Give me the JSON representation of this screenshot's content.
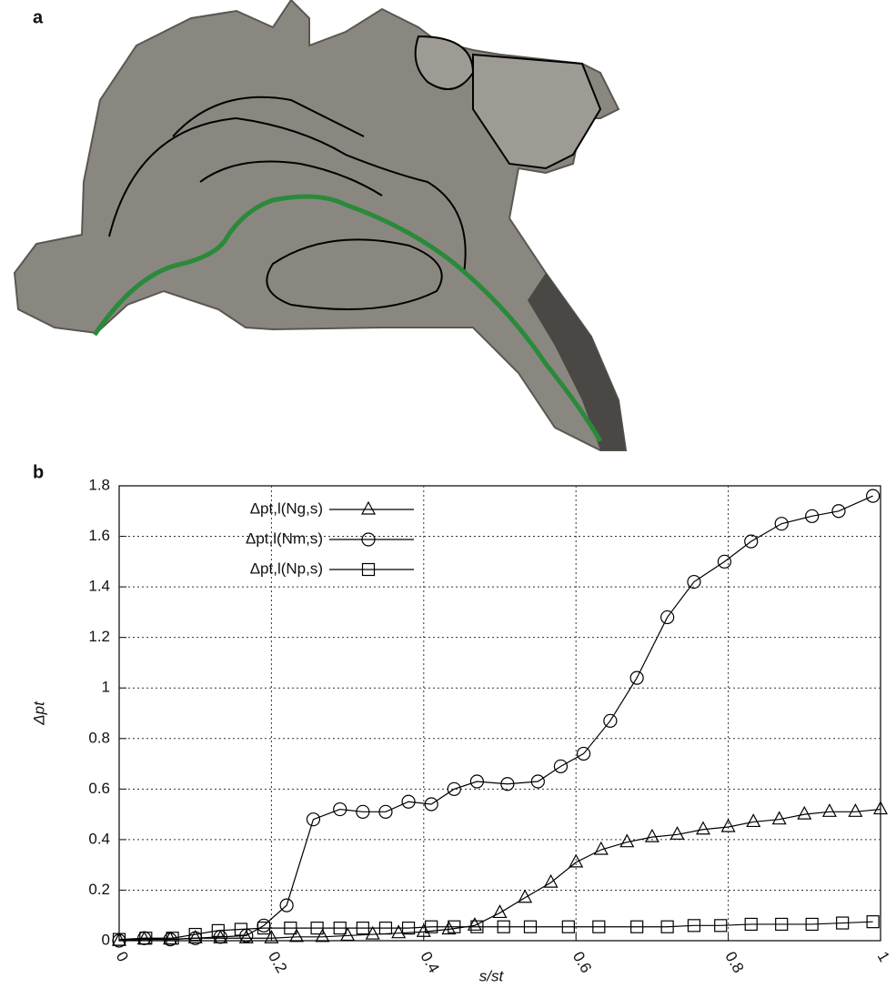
{
  "figure": {
    "panel_a_label": "a",
    "panel_b_label": "b"
  },
  "chart_data": {
    "type": "line",
    "x_label": "s/st",
    "y_label": "Δpt",
    "xlim": [
      0,
      1
    ],
    "ylim": [
      0,
      1.8
    ],
    "xticks": [
      0,
      0.2,
      0.4,
      0.6,
      0.8,
      1
    ],
    "yticks": [
      0,
      0.2,
      0.4,
      0.6,
      0.8,
      1,
      1.2,
      1.4,
      1.6,
      1.8
    ],
    "grid": true,
    "legend": "upper-left",
    "series": [
      {
        "name": "Δpt,l(Ng,s)",
        "color": "#000000",
        "marker": "triangle",
        "x": [
          0,
          0.033,
          0.067,
          0.1,
          0.133,
          0.167,
          0.2,
          0.233,
          0.267,
          0.3,
          0.333,
          0.367,
          0.4,
          0.433,
          0.467,
          0.5,
          0.533,
          0.567,
          0.6,
          0.633,
          0.667,
          0.7,
          0.733,
          0.767,
          0.8,
          0.833,
          0.867,
          0.9,
          0.933,
          0.967,
          1
        ],
        "values": [
          0,
          0.005,
          0.005,
          0.01,
          0.01,
          0.01,
          0.01,
          0.015,
          0.015,
          0.02,
          0.025,
          0.03,
          0.035,
          0.045,
          0.06,
          0.11,
          0.17,
          0.23,
          0.31,
          0.36,
          0.39,
          0.41,
          0.42,
          0.44,
          0.45,
          0.47,
          0.48,
          0.5,
          0.51,
          0.51,
          0.52
        ]
      },
      {
        "name": "Δpt,l(Nm,s)",
        "color": "#000000",
        "marker": "circle",
        "x": [
          0,
          0.033,
          0.067,
          0.1,
          0.133,
          0.167,
          0.19,
          0.22,
          0.255,
          0.29,
          0.32,
          0.35,
          0.38,
          0.41,
          0.44,
          0.47,
          0.51,
          0.55,
          0.58,
          0.61,
          0.645,
          0.68,
          0.72,
          0.755,
          0.795,
          0.83,
          0.87,
          0.91,
          0.945,
          0.99
        ],
        "values": [
          0,
          0.01,
          0.005,
          0.01,
          0.015,
          0.02,
          0.06,
          0.14,
          0.48,
          0.52,
          0.51,
          0.51,
          0.55,
          0.54,
          0.6,
          0.63,
          0.62,
          0.63,
          0.69,
          0.74,
          0.87,
          1.04,
          1.28,
          1.42,
          1.5,
          1.58,
          1.65,
          1.68,
          1.7,
          1.76
        ]
      },
      {
        "name": "Δpt,l(Np,s)",
        "color": "#000000",
        "marker": "square",
        "x": [
          0,
          0.035,
          0.07,
          0.1,
          0.13,
          0.16,
          0.19,
          0.225,
          0.26,
          0.29,
          0.32,
          0.35,
          0.38,
          0.41,
          0.44,
          0.47,
          0.505,
          0.54,
          0.59,
          0.63,
          0.68,
          0.72,
          0.755,
          0.79,
          0.83,
          0.87,
          0.91,
          0.95,
          0.99
        ],
        "values": [
          0.005,
          0.01,
          0.01,
          0.025,
          0.04,
          0.045,
          0.05,
          0.05,
          0.05,
          0.05,
          0.05,
          0.05,
          0.05,
          0.055,
          0.055,
          0.055,
          0.055,
          0.055,
          0.055,
          0.055,
          0.055,
          0.055,
          0.06,
          0.06,
          0.065,
          0.065,
          0.065,
          0.07,
          0.075
        ]
      }
    ]
  }
}
